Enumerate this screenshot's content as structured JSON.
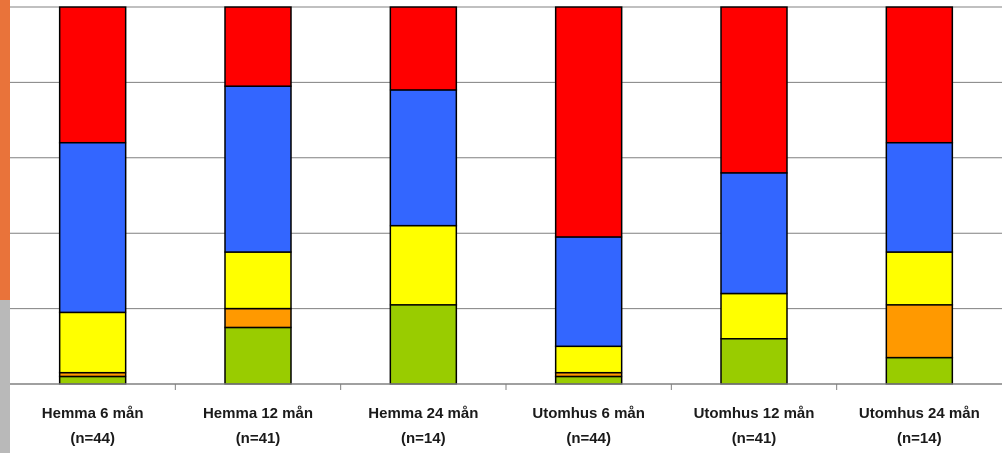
{
  "chart_data": {
    "type": "bar",
    "stacked": true,
    "normalized": true,
    "title": "",
    "xlabel": "",
    "ylabel": "",
    "ylim": [
      0,
      100
    ],
    "grid": true,
    "legend": "none",
    "categories": [
      {
        "name": "Hemma 6 mån",
        "n": "(n=44)"
      },
      {
        "name": "Hemma 12 mån",
        "n": "(n=41)"
      },
      {
        "name": "Hemma 24 mån",
        "n": "(n=14)"
      },
      {
        "name": "Utomhus 6 mån",
        "n": "(n=44)"
      },
      {
        "name": "Utomhus 12 mån",
        "n": "(n=41)"
      },
      {
        "name": "Utomhus 24 mån",
        "n": "(n=14)"
      }
    ],
    "series": [
      {
        "color": "#99cc00",
        "values": [
          2,
          15,
          21,
          2,
          12,
          7
        ]
      },
      {
        "color": "#ff9900",
        "values": [
          1,
          5,
          0,
          1,
          0,
          14
        ]
      },
      {
        "color": "#ffff00",
        "values": [
          16,
          15,
          21,
          7,
          12,
          14
        ]
      },
      {
        "color": "#3366ff",
        "values": [
          45,
          44,
          36,
          29,
          32,
          29
        ]
      },
      {
        "color": "#ff0000",
        "values": [
          36,
          21,
          22,
          61,
          44,
          36
        ]
      }
    ]
  }
}
